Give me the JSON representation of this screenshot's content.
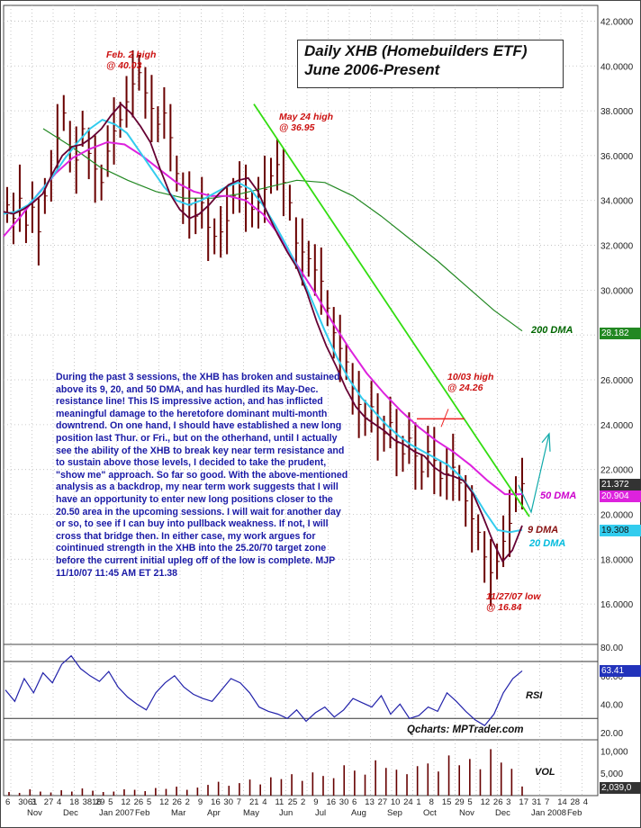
{
  "title_line1": "Daily XHB (Homebuilders ETF)",
  "title_line2": "June 2006-Present",
  "commentary": "During the past 3 sessions, the XHB has broken and sustained above its 9, 20, and 50 DMA, and has hurdled its May-Dec. resistance line!  This IS impressive action, and has inflicted meaningful damage to the heretofore dominant multi-month downtrend. On one hand, I should have established a new long position last Thur. or Fri., but on the otherhand, until I actually see the ability of the XHB to break key near term resistance and to sustain above those levels, I decided to take the prudent, \"show me\" approach. So far so good. With the above-mentioned analysis as a backdrop, my near term work suggests that I will have an opportunity to enter new long positions closer to the 20.50 area in the upcoming sessions. I will wait for another day or so, to see if I can buy into pullback weakness. If not, I will cross that bridge then. In either case, my work argues for cointinued strength in the XHB into the 25.20/70 target zone before the current initial upleg off of the low is complete. MJP 11/10/07  11:45 AM ET  21.38",
  "annotations": {
    "feb_high": "Feb. 2 high\n@ 40.03",
    "may_high": "May 24 high\n@ 36.95",
    "oct_high": "10/03 high\n@ 24.26",
    "nov_low": "11/27/07 low\n@ 16.84",
    "dma200": "200 DMA",
    "dma50": "50 DMA",
    "dma9": "9 DMA",
    "dma20": "20 DMA"
  },
  "badges": {
    "dma200": "28.182",
    "price": "21.372",
    "dma50": "20.904",
    "dma20": "19.308",
    "rsi": "63.41",
    "vol": "2,039,0"
  },
  "panel_labels": {
    "rsi": "RSI",
    "vol": "VOL"
  },
  "credit": "Qcharts: MPTrader.com",
  "colors": {
    "price_bars": "#6a0000",
    "dma9": "#660033",
    "dma20": "#33ccee",
    "dma50": "#dd22dd",
    "dma200": "#228822",
    "trendline": "#33dd11",
    "resistance": "#ee2222",
    "projection": "#11aaaa",
    "rsi_line": "#2222aa",
    "volume": "#660000",
    "badge_dma200": "#228822",
    "badge_price": "#333333",
    "badge_dma50": "#dd22dd",
    "badge_dma20": "#33ccee",
    "badge_rsi": "#2233bb",
    "badge_vol": "#333333"
  },
  "chart_data": [
    {
      "type": "candlestick",
      "title": "Daily XHB (Homebuilders ETF) June 2006-Present",
      "y_ticks": [
        "42.0000",
        "40.0000",
        "38.0000",
        "36.0000",
        "34.0000",
        "32.0000",
        "30.0000",
        "28.0000",
        "26.0000",
        "24.0000",
        "22.0000",
        "20.0000",
        "18.0000",
        "16.0000"
      ],
      "ylim": [
        14.2,
        42.7
      ],
      "x_months": [
        "Nov",
        "Dec",
        "Jan 2007",
        "Feb",
        "Mar",
        "Apr",
        "May",
        "Jun",
        "Jul",
        "Aug",
        "Sep",
        "Oct",
        "Nov",
        "Dec",
        "Jan 2008",
        "Feb"
      ],
      "x_day_ticks": [
        "6",
        "3061",
        "3",
        "27",
        "4",
        "18",
        "3816",
        "29",
        "5",
        "12",
        "26",
        "5",
        "12",
        "26",
        "2",
        "9",
        "16",
        "30",
        "7",
        "21",
        "4",
        "11",
        "25",
        "2",
        "9",
        "16",
        "30",
        "6",
        "13",
        "27",
        "10",
        "24",
        "1",
        "8",
        "15",
        "29",
        "5",
        "12",
        "26",
        "3",
        "17",
        "31",
        "7",
        "14",
        "28",
        "4"
      ],
      "key_points": [
        {
          "label": "Feb. 2 high",
          "value": 40.03
        },
        {
          "label": "May 24 high",
          "value": 36.95
        },
        {
          "label": "10/03 high",
          "value": 24.26
        },
        {
          "label": "11/27/07 low",
          "value": 16.84
        }
      ],
      "close_series": [
        33.8,
        33.2,
        34.1,
        32.9,
        33.7,
        32.6,
        34.2,
        35.1,
        36.8,
        37.9,
        36.4,
        35.8,
        37.2,
        36.1,
        35.4,
        34.8,
        36.2,
        37.1,
        37.6,
        38.4,
        39.2,
        39.7,
        38.8,
        38.1,
        37.4,
        37.9,
        36.8,
        35.2,
        34.1,
        33.8,
        33.3,
        33.9,
        32.8,
        32.4,
        32.6,
        33.1,
        34.2,
        34.6,
        34.1,
        33.6,
        33.9,
        34.5,
        35.1,
        35.6,
        34.8,
        33.9,
        32.1,
        31.7,
        31.4,
        30.9,
        30.4,
        29.2,
        28.1,
        27.4,
        26.8,
        25.6,
        24.9,
        24.3,
        24.8,
        23.9,
        23.6,
        24.1,
        23.2,
        22.7,
        23.4,
        22.6,
        21.9,
        22.8,
        22.4,
        21.6,
        21.8,
        22.1,
        21.4,
        20.6,
        19.8,
        19.2,
        18.1,
        17.4,
        17.9,
        18.8,
        19.6,
        20.9,
        21.37
      ],
      "dma9_series": [
        33.5,
        33.4,
        33.6,
        33.9,
        34.3,
        35.2,
        36.0,
        36.4,
        36.5,
        36.8,
        37.2,
        37.8,
        38.3,
        37.9,
        37.3,
        36.6,
        35.4,
        34.3,
        33.6,
        33.2,
        33.4,
        33.8,
        34.3,
        34.7,
        34.9,
        35.0,
        34.4,
        33.4,
        32.5,
        31.7,
        31.0,
        29.9,
        28.6,
        27.5,
        26.6,
        25.6,
        24.8,
        24.3,
        24.0,
        23.7,
        23.3,
        23.1,
        22.8,
        22.6,
        22.1,
        21.8,
        21.7,
        21.5,
        20.9,
        19.9,
        18.8,
        17.9,
        18.4,
        19.5
      ],
      "dma20_series": [
        33.4,
        33.5,
        33.8,
        34.4,
        35.1,
        35.9,
        36.6,
        37.2,
        37.6,
        37.4,
        37.0,
        36.2,
        35.4,
        34.6,
        34.0,
        33.8,
        34.0,
        34.3,
        34.6,
        34.8,
        34.5,
        33.8,
        32.9,
        31.9,
        30.8,
        29.5,
        28.2,
        27.0,
        26.0,
        25.2,
        24.6,
        24.0,
        23.5,
        23.1,
        22.8,
        22.5,
        22.2,
        21.7,
        21.0,
        20.1,
        19.3,
        19.2,
        19.31
      ],
      "dma50_series": [
        32.4,
        33.3,
        34.3,
        35.2,
        35.9,
        36.3,
        36.6,
        36.5,
        36.0,
        35.4,
        34.8,
        34.4,
        34.2,
        34.2,
        34.0,
        33.4,
        32.4,
        31.1,
        29.9,
        28.6,
        27.4,
        26.3,
        25.4,
        24.6,
        23.9,
        23.3,
        22.8,
        22.2,
        21.5,
        20.9,
        20.9
      ],
      "dma200_series": [
        37.2,
        36.4,
        35.5,
        34.9,
        34.4,
        34.1,
        34.1,
        34.3,
        34.6,
        34.9,
        34.8,
        34.2,
        33.3,
        32.3,
        31.3,
        30.2,
        29.1,
        28.18
      ]
    },
    {
      "type": "line",
      "title": "RSI",
      "y_ticks": [
        "80.00",
        "60.00",
        "40.00",
        "20.00"
      ],
      "ylim": [
        15,
        82
      ],
      "horizontal_lines": [
        70,
        30
      ],
      "values": [
        50,
        42,
        58,
        48,
        62,
        55,
        68,
        74,
        65,
        60,
        56,
        63,
        52,
        45,
        40,
        36,
        48,
        55,
        60,
        52,
        47,
        44,
        42,
        50,
        58,
        55,
        48,
        38,
        35,
        33,
        30,
        36,
        28,
        34,
        38,
        31,
        36,
        44,
        41,
        38,
        46,
        33,
        40,
        30,
        32,
        38,
        35,
        48,
        42,
        35,
        29,
        25,
        33,
        48,
        58,
        63.41
      ]
    },
    {
      "type": "bar",
      "title": "VOL",
      "y_ticks": [
        "10,000",
        "5,000"
      ],
      "ylim": [
        0,
        12500
      ],
      "values": [
        800,
        600,
        1400,
        900,
        700,
        1200,
        900,
        1600,
        1100,
        800,
        900,
        1400,
        1300,
        1000,
        1700,
        1500,
        2000,
        1300,
        1800,
        2400,
        3100,
        2200,
        2800,
        3600,
        2500,
        4100,
        3700,
        4800,
        3300,
        5200,
        4400,
        3900,
        6800,
        5600,
        4700,
        7900,
        6200,
        5800,
        4800,
        6600,
        7200,
        5400,
        9000,
        6800,
        8200,
        5900,
        10400,
        7400,
        6000,
        2039
      ]
    }
  ]
}
